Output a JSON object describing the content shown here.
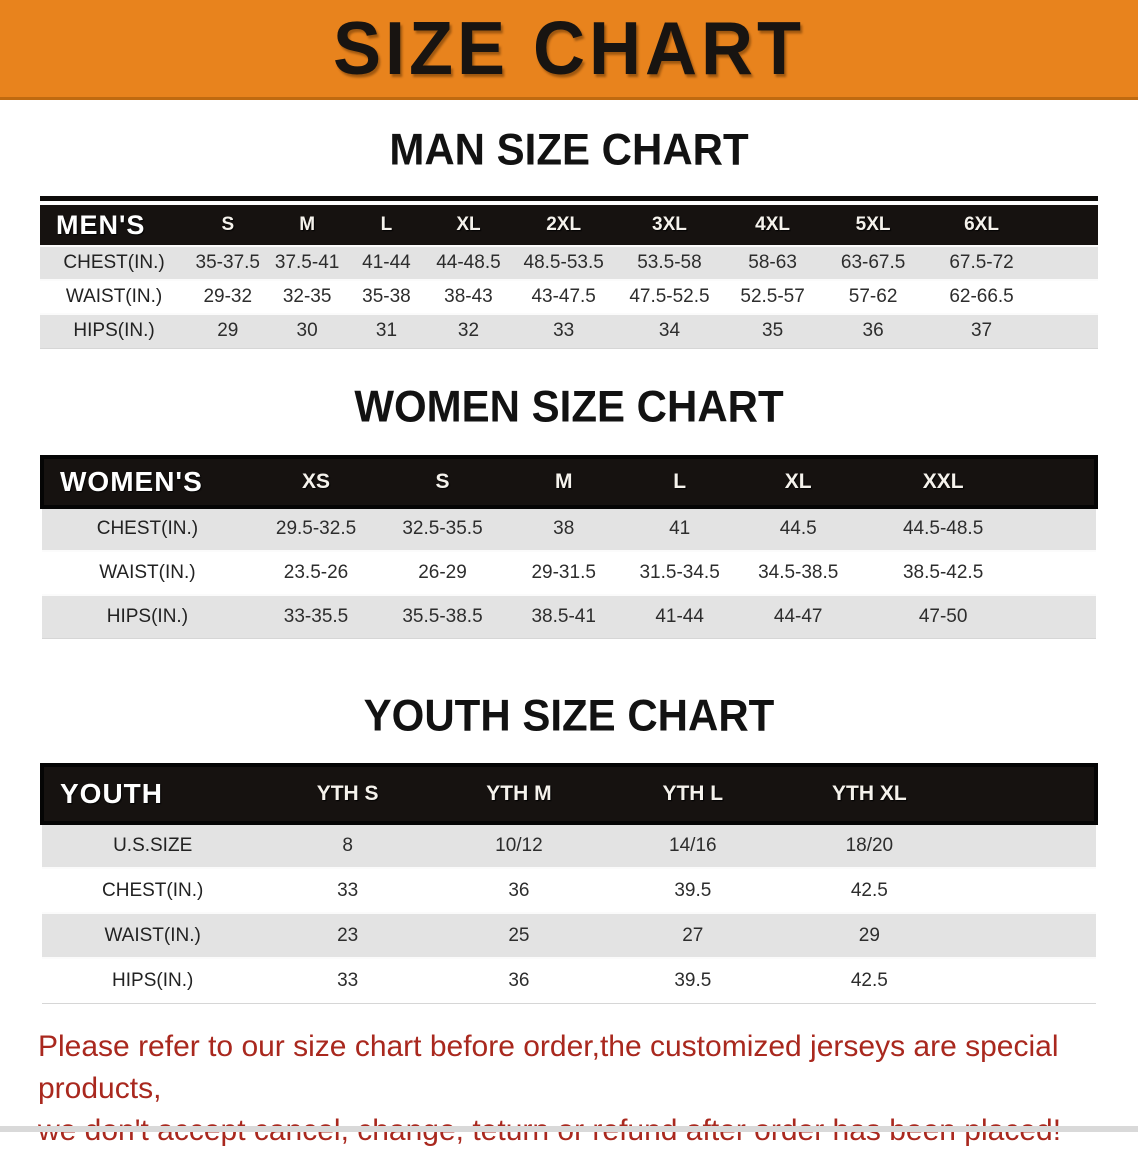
{
  "banner": {
    "title": "SIZE CHART"
  },
  "sections": [
    {
      "heading": "MAN SIZE CHART",
      "table": {
        "header": [
          "MEN'S",
          "S",
          "M",
          "L",
          "XL",
          "2XL",
          "3XL",
          "4XL",
          "5XL",
          "6XL"
        ],
        "rows": [
          [
            "CHEST(IN.)",
            "35-37.5",
            "37.5-41",
            "41-44",
            "44-48.5",
            "48.5-53.5",
            "53.5-58",
            "58-63",
            "63-67.5",
            "67.5-72"
          ],
          [
            "WAIST(IN.)",
            "29-32",
            "32-35",
            "35-38",
            "38-43",
            "43-47.5",
            "47.5-52.5",
            "52.5-57",
            "57-62",
            "62-66.5"
          ],
          [
            "HIPS(IN.)",
            "29",
            "30",
            "31",
            "32",
            "33",
            "34",
            "35",
            "36",
            "37"
          ]
        ]
      }
    },
    {
      "heading": "WOMEN SIZE CHART",
      "table": {
        "header": [
          "WOMEN'S",
          "XS",
          "S",
          "M",
          "L",
          "XL",
          "XXL"
        ],
        "rows": [
          [
            "CHEST(IN.)",
            "29.5-32.5",
            "32.5-35.5",
            "38",
            "41",
            "44.5",
            "44.5-48.5"
          ],
          [
            "WAIST(IN.)",
            "23.5-26",
            "26-29",
            "29-31.5",
            "31.5-34.5",
            "34.5-38.5",
            "38.5-42.5"
          ],
          [
            "HIPS(IN.)",
            "33-35.5",
            "35.5-38.5",
            "38.5-41",
            "41-44",
            "44-47",
            "47-50"
          ]
        ]
      }
    },
    {
      "heading": "YOUTH SIZE CHART",
      "table": {
        "header": [
          "YOUTH",
          "YTH S",
          "YTH M",
          "YTH L",
          "YTH XL"
        ],
        "rows": [
          [
            "U.S.SIZE",
            "8",
            "10/12",
            "14/16",
            "18/20"
          ],
          [
            "CHEST(IN.)",
            "33",
            "36",
            "39.5",
            "42.5"
          ],
          [
            "WAIST(IN.)",
            "23",
            "25",
            "27",
            "29"
          ],
          [
            "HIPS(IN.)",
            "33",
            "36",
            "39.5",
            "42.5"
          ]
        ]
      }
    }
  ],
  "footer": {
    "lines": [
      "Please refer to our size chart before order,the customized jerseys are special products,",
      "we don't accept cancel, change, teturn or refund after order has been placed!"
    ]
  },
  "colors": {
    "banner_bg": "#E8831D",
    "banner_border": "#BF6A10",
    "table_header_bg": "#161210",
    "row_stripe": "#E3E3E3",
    "footer_text": "#A9281E"
  }
}
